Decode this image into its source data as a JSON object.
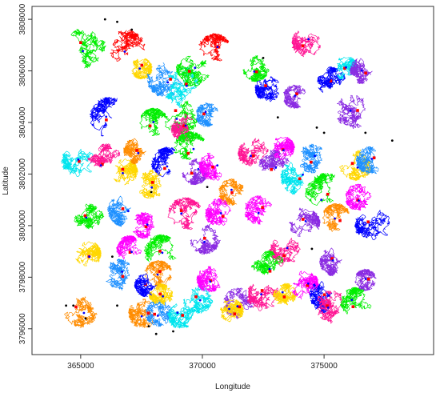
{
  "chart_data": {
    "type": "line",
    "title": "",
    "xlabel": "Longitude",
    "ylabel": "Latitude",
    "xlim": [
      363000,
      379500
    ],
    "ylim": [
      3795000,
      3808500
    ],
    "xticks": [
      365000,
      370000,
      375000
    ],
    "yticks": [
      3796000,
      3798000,
      3800000,
      3802000,
      3804000,
      3806000,
      3808000
    ],
    "xtick_labels": [
      "365000",
      "370000",
      "375000"
    ],
    "ytick_labels": [
      "3796000",
      "3798000",
      "3800000",
      "3802000",
      "3804000",
      "3806000",
      "3808000"
    ],
    "grid": false,
    "legend": "none",
    "palette": [
      "#ff0000",
      "#ff8c00",
      "#ffd700",
      "#00ee00",
      "#00e5ee",
      "#1e90ff",
      "#0000ff",
      "#8a2be2",
      "#ff00ff",
      "#ff1493"
    ],
    "clusters": [
      {
        "x": 365200,
        "y": 3806900,
        "r": 850,
        "color": "#00ee00"
      },
      {
        "x": 366900,
        "y": 3806900,
        "r": 750,
        "color": "#ff0000"
      },
      {
        "x": 367500,
        "y": 3806100,
        "r": 450,
        "color": "#ffd700"
      },
      {
        "x": 368500,
        "y": 3805700,
        "r": 800,
        "color": "#1e90ff"
      },
      {
        "x": 369300,
        "y": 3805300,
        "r": 900,
        "color": "#00e5ee"
      },
      {
        "x": 369600,
        "y": 3806000,
        "r": 700,
        "color": "#00ee00"
      },
      {
        "x": 370500,
        "y": 3806800,
        "r": 700,
        "color": "#ff0000"
      },
      {
        "x": 372200,
        "y": 3806100,
        "r": 550,
        "color": "#00ee00"
      },
      {
        "x": 372700,
        "y": 3805300,
        "r": 550,
        "color": "#0000ff"
      },
      {
        "x": 373800,
        "y": 3805000,
        "r": 500,
        "color": "#8a2be2"
      },
      {
        "x": 374300,
        "y": 3807100,
        "r": 650,
        "color": "#ff1493"
      },
      {
        "x": 375300,
        "y": 3805600,
        "r": 600,
        "color": "#0000ff"
      },
      {
        "x": 375900,
        "y": 3806100,
        "r": 500,
        "color": "#00e5ee"
      },
      {
        "x": 376600,
        "y": 3806000,
        "r": 550,
        "color": "#8a2be2"
      },
      {
        "x": 376200,
        "y": 3804300,
        "r": 850,
        "color": "#8a2be2"
      },
      {
        "x": 366200,
        "y": 3804200,
        "r": 850,
        "color": "#0000ff"
      },
      {
        "x": 368000,
        "y": 3804000,
        "r": 600,
        "color": "#00ee00"
      },
      {
        "x": 369100,
        "y": 3804300,
        "r": 800,
        "color": "#00ee00"
      },
      {
        "x": 369300,
        "y": 3803800,
        "r": 600,
        "color": "#ff1493"
      },
      {
        "x": 370200,
        "y": 3804300,
        "r": 500,
        "color": "#1e90ff"
      },
      {
        "x": 364900,
        "y": 3802500,
        "r": 700,
        "color": "#00e5ee"
      },
      {
        "x": 366000,
        "y": 3802500,
        "r": 750,
        "color": "#ff1493"
      },
      {
        "x": 366800,
        "y": 3802100,
        "r": 550,
        "color": "#ffd700"
      },
      {
        "x": 367300,
        "y": 3802900,
        "r": 550,
        "color": "#ff8c00"
      },
      {
        "x": 367900,
        "y": 3801600,
        "r": 600,
        "color": "#ffd700"
      },
      {
        "x": 368600,
        "y": 3802400,
        "r": 700,
        "color": "#0000ff"
      },
      {
        "x": 369500,
        "y": 3803000,
        "r": 700,
        "color": "#00ee00"
      },
      {
        "x": 369700,
        "y": 3802100,
        "r": 550,
        "color": "#8a2be2"
      },
      {
        "x": 370500,
        "y": 3802300,
        "r": 650,
        "color": "#ff00ff"
      },
      {
        "x": 371200,
        "y": 3801300,
        "r": 550,
        "color": "#ff8c00"
      },
      {
        "x": 372100,
        "y": 3802800,
        "r": 650,
        "color": "#ff1493"
      },
      {
        "x": 372900,
        "y": 3802300,
        "r": 700,
        "color": "#8a2be2"
      },
      {
        "x": 373300,
        "y": 3803000,
        "r": 500,
        "color": "#ff00ff"
      },
      {
        "x": 374000,
        "y": 3801900,
        "r": 800,
        "color": "#00e5ee"
      },
      {
        "x": 374500,
        "y": 3802600,
        "r": 600,
        "color": "#1e90ff"
      },
      {
        "x": 375100,
        "y": 3801200,
        "r": 900,
        "color": "#00ee00"
      },
      {
        "x": 375500,
        "y": 3800300,
        "r": 600,
        "color": "#ff8c00"
      },
      {
        "x": 376300,
        "y": 3802400,
        "r": 700,
        "color": "#ffd700"
      },
      {
        "x": 376900,
        "y": 3802500,
        "r": 600,
        "color": "#1e90ff"
      },
      {
        "x": 376400,
        "y": 3801100,
        "r": 550,
        "color": "#ff00ff"
      },
      {
        "x": 377000,
        "y": 3800000,
        "r": 750,
        "color": "#0000ff"
      },
      {
        "x": 365300,
        "y": 3800200,
        "r": 700,
        "color": "#00ee00"
      },
      {
        "x": 365300,
        "y": 3798900,
        "r": 550,
        "color": "#ffd700"
      },
      {
        "x": 366800,
        "y": 3800600,
        "r": 700,
        "color": "#1e90ff"
      },
      {
        "x": 367600,
        "y": 3800000,
        "r": 550,
        "color": "#ff00ff"
      },
      {
        "x": 368300,
        "y": 3799000,
        "r": 700,
        "color": "#00ee00"
      },
      {
        "x": 369300,
        "y": 3800400,
        "r": 750,
        "color": "#ff1493"
      },
      {
        "x": 370100,
        "y": 3799500,
        "r": 650,
        "color": "#8a2be2"
      },
      {
        "x": 370700,
        "y": 3800500,
        "r": 600,
        "color": "#ff00ff"
      },
      {
        "x": 372300,
        "y": 3800600,
        "r": 600,
        "color": "#ff00ff"
      },
      {
        "x": 373400,
        "y": 3799000,
        "r": 650,
        "color": "#ff1493"
      },
      {
        "x": 372700,
        "y": 3798400,
        "r": 700,
        "color": "#00ee00"
      },
      {
        "x": 374200,
        "y": 3800100,
        "r": 650,
        "color": "#8a2be2"
      },
      {
        "x": 375400,
        "y": 3798600,
        "r": 600,
        "color": "#8a2be2"
      },
      {
        "x": 366600,
        "y": 3798100,
        "r": 650,
        "color": "#1e90ff"
      },
      {
        "x": 367000,
        "y": 3799100,
        "r": 550,
        "color": "#ff00ff"
      },
      {
        "x": 368200,
        "y": 3798100,
        "r": 600,
        "color": "#ff8c00"
      },
      {
        "x": 369800,
        "y": 3797200,
        "r": 650,
        "color": "#00e5ee"
      },
      {
        "x": 370300,
        "y": 3797900,
        "r": 550,
        "color": "#ff00ff"
      },
      {
        "x": 371500,
        "y": 3797000,
        "r": 650,
        "color": "#8a2be2"
      },
      {
        "x": 372500,
        "y": 3797300,
        "r": 700,
        "color": "#ff1493"
      },
      {
        "x": 373400,
        "y": 3797300,
        "r": 500,
        "color": "#ffd700"
      },
      {
        "x": 374200,
        "y": 3797700,
        "r": 600,
        "color": "#ff00ff"
      },
      {
        "x": 375200,
        "y": 3797300,
        "r": 800,
        "color": "#0000ff"
      },
      {
        "x": 375300,
        "y": 3796800,
        "r": 750,
        "color": "#ff1493"
      },
      {
        "x": 376300,
        "y": 3797000,
        "r": 650,
        "color": "#00ee00"
      },
      {
        "x": 376700,
        "y": 3797900,
        "r": 450,
        "color": "#8a2be2"
      },
      {
        "x": 365000,
        "y": 3796700,
        "r": 700,
        "color": "#ff8c00"
      },
      {
        "x": 367600,
        "y": 3796600,
        "r": 650,
        "color": "#ff8c00"
      },
      {
        "x": 368200,
        "y": 3796600,
        "r": 550,
        "color": "#1e90ff"
      },
      {
        "x": 369100,
        "y": 3796500,
        "r": 550,
        "color": "#00e5ee"
      },
      {
        "x": 368300,
        "y": 3797300,
        "r": 500,
        "color": "#ffd700"
      },
      {
        "x": 371200,
        "y": 3796700,
        "r": 500,
        "color": "#ffd700"
      },
      {
        "x": 367700,
        "y": 3797700,
        "r": 500,
        "color": "#0000ff"
      }
    ],
    "black_points": [
      [
        366000,
        3808000
      ],
      [
        366500,
        3807900
      ],
      [
        367100,
        3807600
      ],
      [
        372500,
        3806500
      ],
      [
        374700,
        3803800
      ],
      [
        375000,
        3803600
      ],
      [
        376700,
        3803600
      ],
      [
        377800,
        3803300
      ],
      [
        364400,
        3796900
      ],
      [
        364700,
        3796900
      ],
      [
        365200,
        3796400
      ],
      [
        366500,
        3796900
      ],
      [
        367800,
        3796100
      ],
      [
        368100,
        3795800
      ],
      [
        374500,
        3799100
      ],
      [
        370200,
        3801500
      ],
      [
        367900,
        3801300
      ],
      [
        368800,
        3795900
      ],
      [
        366300,
        3798800
      ],
      [
        373100,
        3804200
      ]
    ]
  }
}
